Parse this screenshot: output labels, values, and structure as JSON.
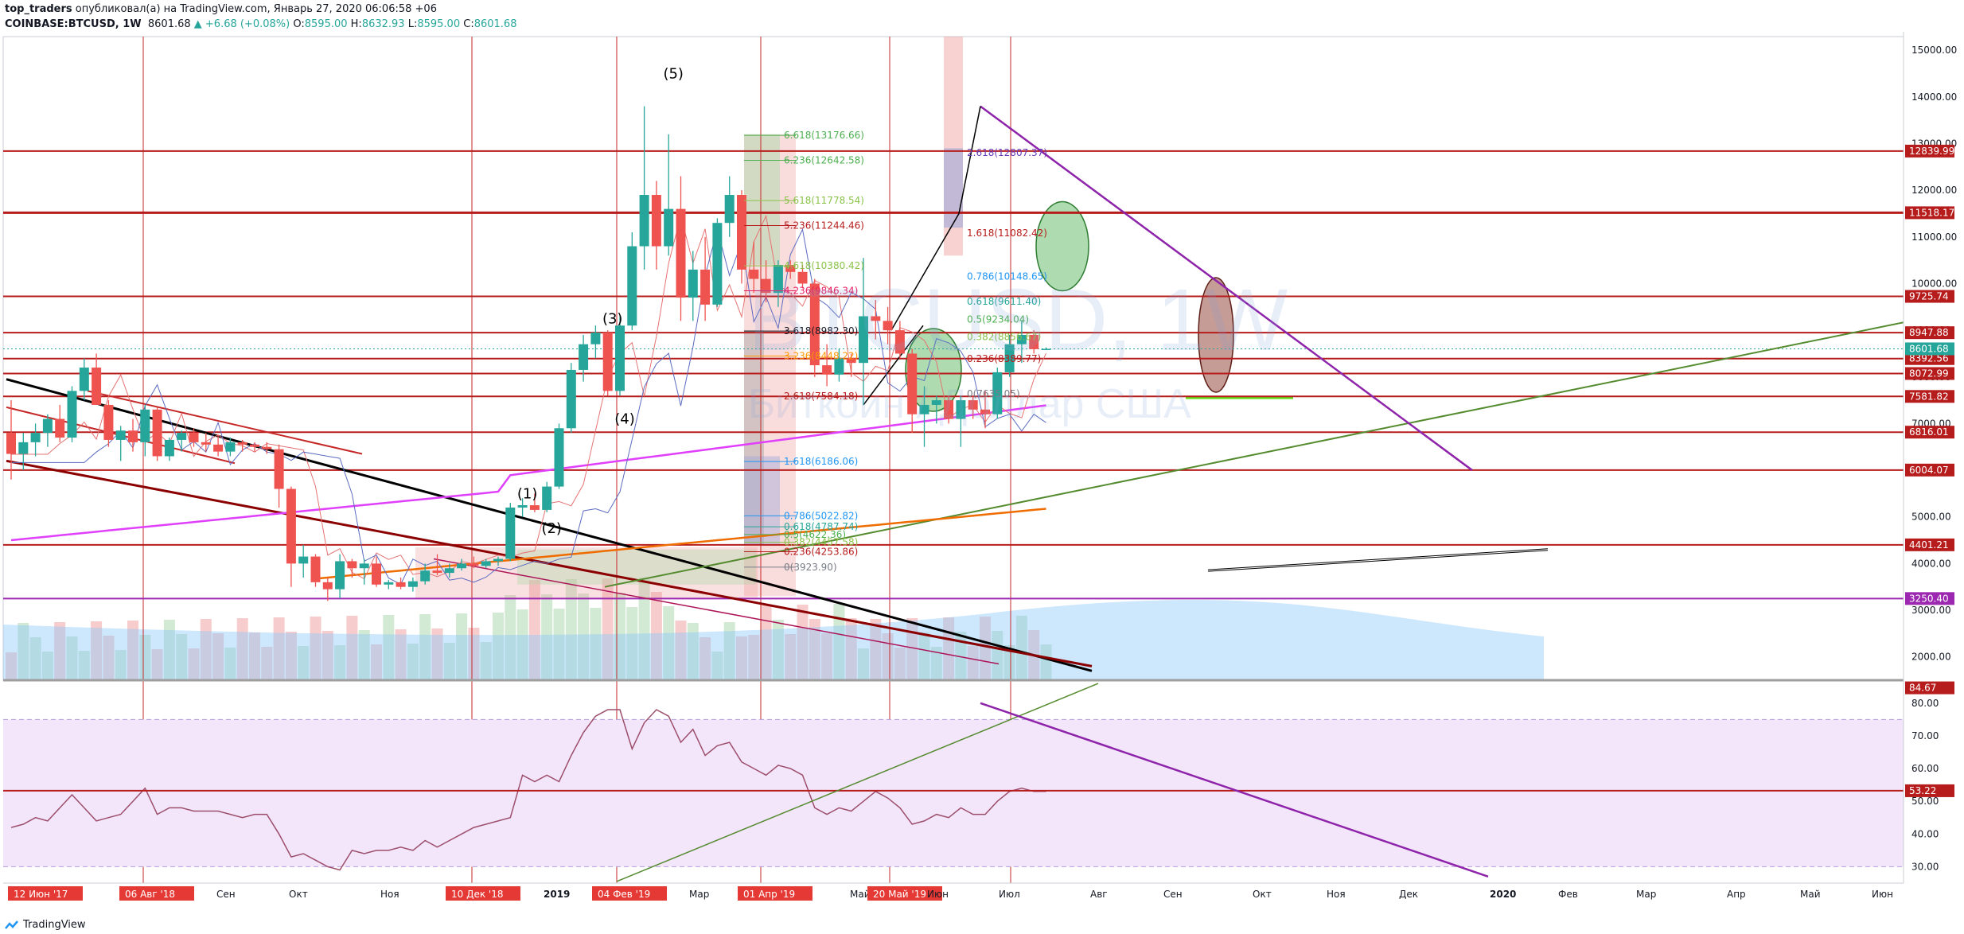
{
  "header": {
    "publisher": "top_traders",
    "published_text": "опубликовал(а) на TradingView.com, Январь 27, 2020 06:06:58 +06",
    "symbol": "COINBASE:BTCUSD, 1W",
    "last": "8601.68",
    "change": "▲ +6.68 (+0.08%)",
    "o_label": "O:",
    "o": "8595.00",
    "h_label": "H:",
    "h": "8632.93",
    "l_label": "L:",
    "l": "8595.00",
    "c_label": "C:",
    "c": "8601.68"
  },
  "watermark": {
    "line1": "BTCUSD, 1W",
    "line2": "Биткоин / Доллар США"
  },
  "footer": {
    "brand": "TradingView"
  },
  "colors": {
    "up": "#26a69a",
    "down": "#ef5350",
    "hline": "#b71c1c",
    "rsi_line": "#9c4e6b",
    "rsi_bg": "#f3e6fb"
  },
  "chart_data": [
    {
      "type": "candlestick",
      "title": "COINBASE:BTCUSD, 1W",
      "price_axis_ticks": [
        "2000.00",
        "3000.00",
        "4000.00",
        "5000.00",
        "6000.00",
        "7000.00",
        "8000.00",
        "9000.00",
        "10000.00",
        "11000.00",
        "12000.00",
        "13000.00",
        "14000.00",
        "15000.00"
      ],
      "ylim": [
        1500,
        15600
      ],
      "time_axis_labels": [
        {
          "label": "12 Июн '17",
          "highlight": true
        },
        {
          "label": "06 Авг '18",
          "highlight": true
        },
        {
          "label": "Сен",
          "highlight": false
        },
        {
          "label": "Окт",
          "highlight": false
        },
        {
          "label": "Ноя",
          "highlight": false
        },
        {
          "label": "10 Дек '18",
          "highlight": true
        },
        {
          "label": "2019",
          "highlight": false,
          "bold": true
        },
        {
          "label": "04 Фев '19",
          "highlight": true
        },
        {
          "label": "Мар",
          "highlight": false
        },
        {
          "label": "01 Апр '19",
          "highlight": true
        },
        {
          "label": "Май",
          "highlight": false
        },
        {
          "label": "20 Май '19",
          "highlight": true
        },
        {
          "label": "Июн",
          "highlight": false
        },
        {
          "label": "Июл",
          "highlight": false
        },
        {
          "label": "Авг",
          "highlight": false
        },
        {
          "label": "Сен",
          "highlight": false
        },
        {
          "label": "Окт",
          "highlight": false
        },
        {
          "label": "Ноя",
          "highlight": false
        },
        {
          "label": "Дек",
          "highlight": false
        },
        {
          "label": "2020",
          "highlight": false,
          "bold": true
        },
        {
          "label": "Фев",
          "highlight": false
        },
        {
          "label": "Мар",
          "highlight": false
        },
        {
          "label": "Апр",
          "highlight": false
        },
        {
          "label": "Май",
          "highlight": false
        },
        {
          "label": "Июн",
          "highlight": false
        }
      ],
      "horizontal_levels": [
        {
          "value": 12839.99,
          "label": "12839.99",
          "color": "#b71c1c"
        },
        {
          "value": 11518.17,
          "label": "11518.17",
          "color": "#b71c1c"
        },
        {
          "value": 9725.74,
          "label": "9725.74",
          "color": "#b71c1c"
        },
        {
          "value": 8947.88,
          "label": "8947.88",
          "color": "#b71c1c"
        },
        {
          "value": 8392.56,
          "label": "8392.56",
          "color": "#b71c1c"
        },
        {
          "value": 8072.99,
          "label": "8072.99",
          "color": "#b71c1c"
        },
        {
          "value": 7581.82,
          "label": "7581.82",
          "color": "#b71c1c"
        },
        {
          "value": 6816.01,
          "label": "6816.01",
          "color": "#b71c1c"
        },
        {
          "value": 6004.07,
          "label": "6004.07",
          "color": "#b71c1c"
        },
        {
          "value": 4401.21,
          "label": "4401.21",
          "color": "#b71c1c"
        },
        {
          "value": 3250.4,
          "label": "3250.40",
          "color": "#9c27b0"
        }
      ],
      "last_price_label": {
        "value": 8601.68,
        "label": "8601.68",
        "color": "#26a69a"
      },
      "fib_extension_labels": [
        {
          "label": "6.618(13176.66)",
          "value": 13176.66,
          "color": "#4caf50"
        },
        {
          "label": "6.236(12642.58)",
          "value": 12642.58,
          "color": "#4caf50"
        },
        {
          "label": "5.618(11778.54)",
          "value": 11778.54,
          "color": "#8bc34a"
        },
        {
          "label": "5.236(11244.46)",
          "value": 11244.46,
          "color": "#b71c1c"
        },
        {
          "label": "4.618(10380.42)",
          "value": 10380.42,
          "color": "#8bc34a"
        },
        {
          "label": "4.236(9846.34)",
          "value": 9846.34,
          "color": "#e91e63"
        },
        {
          "label": "3.618(8982.30)",
          "value": 8982.3,
          "color": "#131722"
        },
        {
          "label": "3.236(8448.22)",
          "value": 8448.22,
          "color": "#ff9800"
        },
        {
          "label": "2.618(7584.18)",
          "value": 7584.18,
          "color": "#b71c1c"
        },
        {
          "label": "1.618(6186.06)",
          "value": 6186.06,
          "color": "#2196f3"
        },
        {
          "label": "0.786(5022.82)",
          "value": 5022.82,
          "color": "#2196f3"
        },
        {
          "label": "0.618(4787.74)",
          "value": 4787.74,
          "color": "#26a69a"
        },
        {
          "label": "0.5(4622.36)",
          "value": 4622.36,
          "color": "#4caf50"
        },
        {
          "label": "0.382(4457.58)",
          "value": 4457.58,
          "color": "#8bc34a"
        },
        {
          "label": "0.236(4253.86)",
          "value": 4253.86,
          "color": "#b71c1c"
        },
        {
          "label": "0(3923.90)",
          "value": 3923.9,
          "color": "#787b86"
        }
      ],
      "fib_retracement_labels": [
        {
          "label": "2.618(12807.37)",
          "value": 12807.37,
          "color": "#673ab7"
        },
        {
          "label": "1.618(11082.42)",
          "value": 11082.42,
          "color": "#b71c1c"
        },
        {
          "label": "0.786(10148.65)",
          "value": 10148.65,
          "color": "#2196f3"
        },
        {
          "label": "0.618(9611.40)",
          "value": 9611.4,
          "color": "#26a69a"
        },
        {
          "label": "0.5(9234.04)",
          "value": 9234.04,
          "color": "#4caf50"
        },
        {
          "label": "0.382(8856.67)",
          "value": 8856.67,
          "color": "#8bc34a"
        },
        {
          "label": "0.236(8389.77)",
          "value": 8389.77,
          "color": "#b71c1c"
        },
        {
          "label": "0(7635.05)",
          "value": 7635.05,
          "color": "#787b86"
        }
      ],
      "wave_labels": [
        {
          "label": "(1)",
          "x_week": 42,
          "value": 5400
        },
        {
          "label": "(2)",
          "x_week": 44,
          "value": 4650
        },
        {
          "label": "(3)",
          "x_week": 49,
          "value": 9150
        },
        {
          "label": "(4)",
          "x_week": 50,
          "value": 7000
        },
        {
          "label": "(5)",
          "x_week": 54,
          "value": 14400
        }
      ],
      "candles": [
        {
          "o": 6800,
          "h": 7500,
          "l": 5800,
          "c": 6350
        },
        {
          "o": 6350,
          "h": 6800,
          "l": 6000,
          "c": 6600
        },
        {
          "o": 6600,
          "h": 7000,
          "l": 6300,
          "c": 6800
        },
        {
          "o": 6800,
          "h": 7200,
          "l": 6500,
          "c": 7100
        },
        {
          "o": 7100,
          "h": 7400,
          "l": 6600,
          "c": 6700
        },
        {
          "o": 6700,
          "h": 7800,
          "l": 6600,
          "c": 7700
        },
        {
          "o": 7700,
          "h": 8400,
          "l": 7500,
          "c": 8200
        },
        {
          "o": 8200,
          "h": 8500,
          "l": 7400,
          "c": 7400
        },
        {
          "o": 7400,
          "h": 7500,
          "l": 6500,
          "c": 6650
        },
        {
          "o": 6650,
          "h": 6950,
          "l": 6200,
          "c": 6850
        },
        {
          "o": 6850,
          "h": 7100,
          "l": 6400,
          "c": 6600
        },
        {
          "o": 6600,
          "h": 7400,
          "l": 6300,
          "c": 7300
        },
        {
          "o": 7300,
          "h": 7350,
          "l": 6200,
          "c": 6300
        },
        {
          "o": 6300,
          "h": 6700,
          "l": 6200,
          "c": 6650
        },
        {
          "o": 6650,
          "h": 6850,
          "l": 6400,
          "c": 6800
        },
        {
          "o": 6800,
          "h": 6900,
          "l": 6500,
          "c": 6600
        },
        {
          "o": 6600,
          "h": 6800,
          "l": 6400,
          "c": 6550
        },
        {
          "o": 6550,
          "h": 6750,
          "l": 6300,
          "c": 6400
        },
        {
          "o": 6400,
          "h": 6700,
          "l": 6300,
          "c": 6600
        },
        {
          "o": 6600,
          "h": 6650,
          "l": 6400,
          "c": 6550
        },
        {
          "o": 6550,
          "h": 6600,
          "l": 6400,
          "c": 6500
        },
        {
          "o": 6500,
          "h": 6600,
          "l": 6350,
          "c": 6450
        },
        {
          "o": 6450,
          "h": 6550,
          "l": 5200,
          "c": 5600
        },
        {
          "o": 5600,
          "h": 5650,
          "l": 3500,
          "c": 4000
        },
        {
          "o": 4000,
          "h": 4400,
          "l": 3700,
          "c": 4150
        },
        {
          "o": 4150,
          "h": 4200,
          "l": 3500,
          "c": 3600
        },
        {
          "o": 3600,
          "h": 3700,
          "l": 3200,
          "c": 3450
        },
        {
          "o": 3450,
          "h": 4200,
          "l": 3250,
          "c": 4050
        },
        {
          "o": 4050,
          "h": 4100,
          "l": 3700,
          "c": 3900
        },
        {
          "o": 3900,
          "h": 4100,
          "l": 3550,
          "c": 4000
        },
        {
          "o": 4000,
          "h": 4150,
          "l": 3500,
          "c": 3550
        },
        {
          "o": 3550,
          "h": 3650,
          "l": 3450,
          "c": 3600
        },
        {
          "o": 3600,
          "h": 3700,
          "l": 3450,
          "c": 3500
        },
        {
          "o": 3500,
          "h": 3700,
          "l": 3400,
          "c": 3620
        },
        {
          "o": 3620,
          "h": 4000,
          "l": 3550,
          "c": 3850
        },
        {
          "o": 3850,
          "h": 4200,
          "l": 3750,
          "c": 3800
        },
        {
          "o": 3800,
          "h": 4000,
          "l": 3700,
          "c": 3900
        },
        {
          "o": 3900,
          "h": 4100,
          "l": 3850,
          "c": 4000
        },
        {
          "o": 4000,
          "h": 4150,
          "l": 3900,
          "c": 3950
        },
        {
          "o": 3950,
          "h": 4100,
          "l": 3900,
          "c": 4050
        },
        {
          "o": 4050,
          "h": 4150,
          "l": 3950,
          "c": 4100
        },
        {
          "o": 4100,
          "h": 5300,
          "l": 4050,
          "c": 5200
        },
        {
          "o": 5200,
          "h": 5400,
          "l": 5000,
          "c": 5250
        },
        {
          "o": 5250,
          "h": 5500,
          "l": 5100,
          "c": 5150
        },
        {
          "o": 5150,
          "h": 5750,
          "l": 5100,
          "c": 5650
        },
        {
          "o": 5650,
          "h": 7000,
          "l": 5600,
          "c": 6900
        },
        {
          "o": 6900,
          "h": 8300,
          "l": 6800,
          "c": 8150
        },
        {
          "o": 8150,
          "h": 8900,
          "l": 7900,
          "c": 8700
        },
        {
          "o": 8700,
          "h": 9100,
          "l": 8400,
          "c": 8950
        },
        {
          "o": 8950,
          "h": 9000,
          "l": 7600,
          "c": 7700
        },
        {
          "o": 7700,
          "h": 9300,
          "l": 7600,
          "c": 9100
        },
        {
          "o": 9100,
          "h": 11100,
          "l": 9000,
          "c": 10800
        },
        {
          "o": 10800,
          "h": 13800,
          "l": 10300,
          "c": 11900
        },
        {
          "o": 11900,
          "h": 12200,
          "l": 10300,
          "c": 10800
        },
        {
          "o": 10800,
          "h": 13200,
          "l": 10600,
          "c": 11600
        },
        {
          "o": 11600,
          "h": 12300,
          "l": 9200,
          "c": 9700
        },
        {
          "o": 9700,
          "h": 10700,
          "l": 9200,
          "c": 10300
        },
        {
          "o": 10300,
          "h": 11000,
          "l": 9200,
          "c": 9550
        },
        {
          "o": 9550,
          "h": 11400,
          "l": 9500,
          "c": 11300
        },
        {
          "o": 11300,
          "h": 12300,
          "l": 11000,
          "c": 11900
        },
        {
          "o": 11900,
          "h": 12000,
          "l": 10000,
          "c": 10300
        },
        {
          "o": 10300,
          "h": 10900,
          "l": 9800,
          "c": 10100
        },
        {
          "o": 10100,
          "h": 10500,
          "l": 9600,
          "c": 9800
        },
        {
          "o": 9800,
          "h": 10500,
          "l": 9500,
          "c": 10400
        },
        {
          "o": 10400,
          "h": 10500,
          "l": 10100,
          "c": 10250
        },
        {
          "o": 10250,
          "h": 10400,
          "l": 9900,
          "c": 10000
        },
        {
          "o": 10000,
          "h": 10100,
          "l": 8000,
          "c": 8250
        },
        {
          "o": 8250,
          "h": 8700,
          "l": 7800,
          "c": 8050
        },
        {
          "o": 8050,
          "h": 8600,
          "l": 7900,
          "c": 8400
        },
        {
          "o": 8400,
          "h": 8500,
          "l": 8000,
          "c": 8300
        },
        {
          "o": 8300,
          "h": 10550,
          "l": 7400,
          "c": 9300
        },
        {
          "o": 9300,
          "h": 9650,
          "l": 8800,
          "c": 9200
        },
        {
          "o": 9200,
          "h": 9500,
          "l": 8700,
          "c": 9000
        },
        {
          "o": 9000,
          "h": 9200,
          "l": 8400,
          "c": 8500
        },
        {
          "o": 8500,
          "h": 8600,
          "l": 6800,
          "c": 7200
        },
        {
          "o": 7200,
          "h": 7800,
          "l": 6500,
          "c": 7400
        },
        {
          "o": 7400,
          "h": 7600,
          "l": 7000,
          "c": 7500
        },
        {
          "o": 7500,
          "h": 7600,
          "l": 7000,
          "c": 7100
        },
        {
          "o": 7100,
          "h": 7600,
          "l": 6500,
          "c": 7500
        },
        {
          "o": 7500,
          "h": 7600,
          "l": 7100,
          "c": 7300
        },
        {
          "o": 7300,
          "h": 7700,
          "l": 6900,
          "c": 7200
        },
        {
          "o": 7200,
          "h": 8200,
          "l": 7100,
          "c": 8100
        },
        {
          "o": 8100,
          "h": 8900,
          "l": 8000,
          "c": 8700
        },
        {
          "o": 8700,
          "h": 9200,
          "l": 8300,
          "c": 8900
        },
        {
          "o": 8900,
          "h": 9000,
          "l": 8500,
          "c": 8595
        },
        {
          "o": 8595,
          "h": 8632.93,
          "l": 8595,
          "c": 8601.68
        }
      ]
    },
    {
      "type": "line",
      "title": "RSI",
      "price_axis_ticks": [
        "30.00",
        "40.00",
        "50.00",
        "60.00",
        "70.00",
        "80.00"
      ],
      "ylim": [
        25,
        87
      ],
      "band": [
        30,
        75
      ],
      "level_labels": [
        {
          "value": 84.67,
          "label": "84.67",
          "color": "#b71c1c"
        },
        {
          "value": 53.22,
          "label": "53.22",
          "color": "#b71c1c"
        }
      ],
      "values": [
        42,
        43,
        45,
        44,
        48,
        52,
        48,
        44,
        45,
        46,
        50,
        54,
        46,
        48,
        48,
        47,
        47,
        47,
        46,
        45,
        46,
        46,
        40,
        33,
        34,
        32,
        30,
        29,
        35,
        34,
        35,
        35,
        36,
        35,
        38,
        36,
        38,
        40,
        42,
        43,
        44,
        45,
        58,
        56,
        58,
        56,
        64,
        71,
        76,
        78,
        78,
        66,
        74,
        78,
        76,
        68,
        72,
        64,
        67,
        68,
        62,
        60,
        58,
        61,
        60,
        58,
        48,
        46,
        48,
        47,
        50,
        53,
        51,
        48,
        43,
        44,
        46,
        45,
        48,
        46,
        46,
        50,
        53,
        54,
        53,
        53
      ]
    }
  ]
}
